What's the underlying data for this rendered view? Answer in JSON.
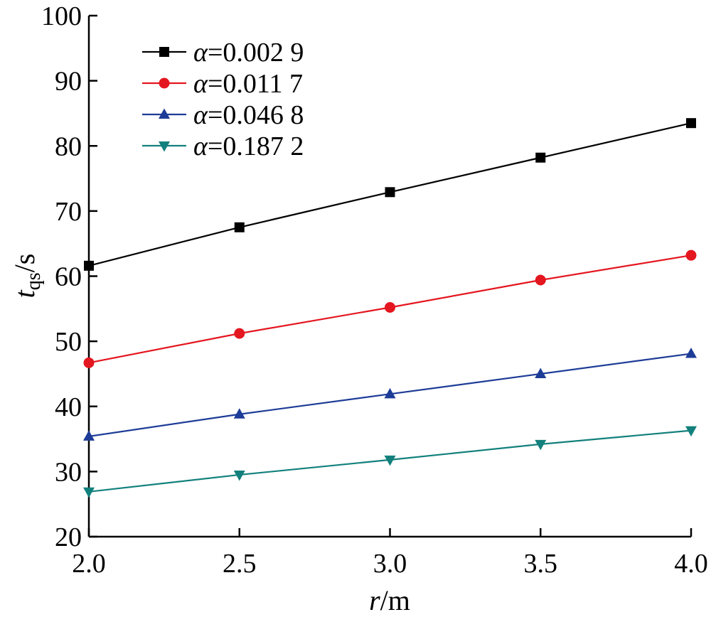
{
  "chart_data": {
    "type": "line",
    "x": [
      2.0,
      2.5,
      3.0,
      3.5,
      4.0
    ],
    "xlim": [
      2.0,
      4.0
    ],
    "ylim": [
      20,
      100
    ],
    "xticks": [
      "2.0",
      "2.5",
      "3.0",
      "3.5",
      "4.0"
    ],
    "yticks": [
      "20",
      "30",
      "40",
      "50",
      "60",
      "70",
      "80",
      "90",
      "100"
    ],
    "xlabel": {
      "var": "r",
      "unit": "m"
    },
    "ylabel": {
      "var": "t",
      "sub": "qs",
      "unit": "s"
    },
    "grid": false,
    "legend_position": "top-left",
    "series": [
      {
        "name": "α=0.002 9",
        "symbol": "α",
        "value": "0.002 9",
        "values": [
          61.6,
          67.5,
          72.9,
          78.2,
          83.5
        ],
        "color": "#000000",
        "marker": "square"
      },
      {
        "name": "α=0.011 7",
        "symbol": "α",
        "value": "0.011 7",
        "values": [
          46.7,
          51.2,
          55.2,
          59.4,
          63.2
        ],
        "color": "#e4161f",
        "marker": "circle"
      },
      {
        "name": "α=0.046 8",
        "symbol": "α",
        "value": "0.046 8",
        "values": [
          35.4,
          38.8,
          41.9,
          45.0,
          48.1
        ],
        "color": "#1d3c97",
        "marker": "triangle-up"
      },
      {
        "name": "α=0.187 2",
        "symbol": "α",
        "value": "0.187 2",
        "values": [
          26.9,
          29.5,
          31.8,
          34.2,
          36.3
        ],
        "color": "#12807c",
        "marker": "triangle-down"
      }
    ]
  }
}
